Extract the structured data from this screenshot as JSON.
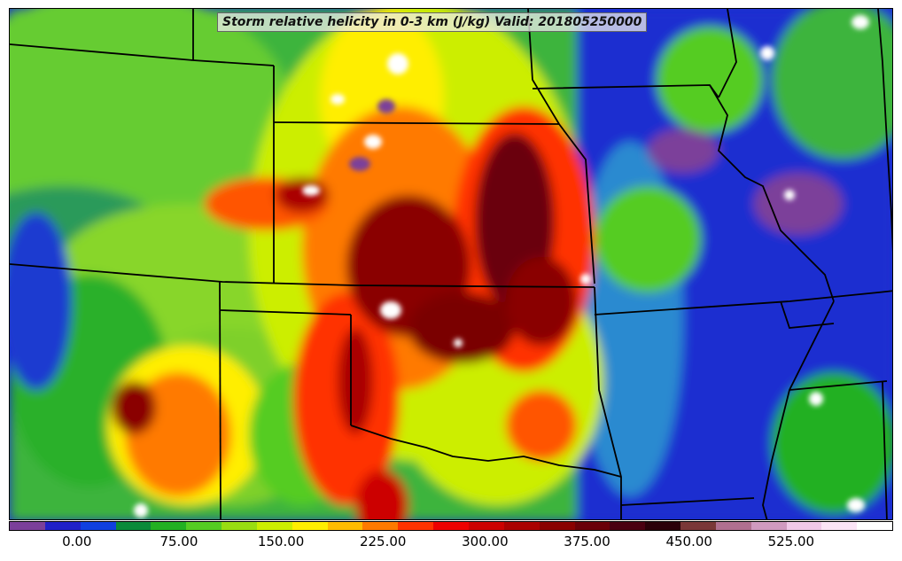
{
  "title": "Storm relative helicity in 0-3 km (J/kg) Valid: 201805250000",
  "colorbar": {
    "min": -50,
    "max": 600,
    "colors": [
      "#7b3f9a",
      "#2020c8",
      "#1040e0",
      "#0a8a3a",
      "#22b022",
      "#55cc22",
      "#99dd11",
      "#ccee00",
      "#ffee00",
      "#ffbb00",
      "#ff7a00",
      "#ff3300",
      "#ee0000",
      "#cc0000",
      "#aa0000",
      "#8a0000",
      "#6a0008",
      "#4a0010",
      "#2a0008",
      "#7a3838",
      "#b07090",
      "#d09ac0",
      "#f0c8e8",
      "#fbe4f6",
      "#ffffff"
    ],
    "tick_values": [
      0,
      75,
      150,
      225,
      300,
      375,
      450,
      525
    ],
    "tick_labels": [
      "0.00",
      "75.00",
      "150.00",
      "225.00",
      "300.00",
      "375.00",
      "450.00",
      "525.00"
    ]
  }
}
